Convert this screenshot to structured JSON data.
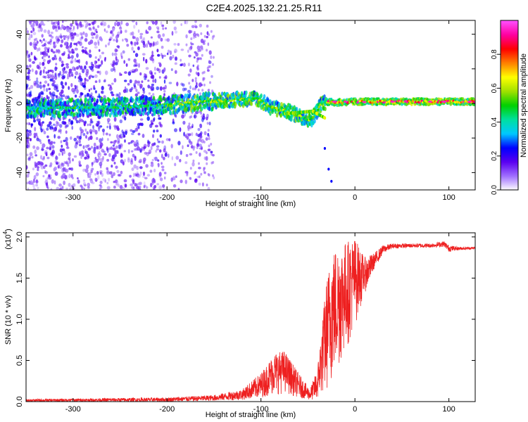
{
  "title": "C2E4.2025.132.21.25.R11",
  "chart_data": [
    {
      "type": "heatmap",
      "xlabel": "Height of straight line (km)",
      "ylabel": "Frequency (Hz)",
      "xlim": [
        -350,
        128
      ],
      "ylim": [
        -50,
        48
      ],
      "x_ticks": [
        -300,
        -200,
        -100,
        0,
        100
      ],
      "y_ticks": [
        -40,
        -20,
        0,
        20,
        40
      ],
      "colorbar": {
        "label": "Normalized spectral amplitude",
        "range": [
          0.0,
          1.0
        ],
        "ticks": [
          0.0,
          0.2,
          0.4,
          0.6,
          0.8
        ],
        "tick_labels": [
          "0.0",
          "0.2",
          "0.4",
          "0.6",
          "0.8"
        ],
        "colors": [
          "#ffffff",
          "#a070ff",
          "#5a00f0",
          "#0000ff",
          "#00c8ff",
          "#00e0a0",
          "#00d000",
          "#a0e000",
          "#ffff00",
          "#ff8000",
          "#ff0000",
          "#ff00a0",
          "#ff50ff"
        ]
      },
      "ridge": {
        "x": [
          -350,
          -250,
          -200,
          -160,
          -120,
          -105,
          -90,
          -70,
          -55,
          -48,
          -42,
          -35,
          -30,
          -20,
          0,
          20,
          60,
          100,
          128
        ],
        "y": [
          -3,
          -2,
          -1,
          1,
          2.5,
          3,
          -2,
          -5,
          -8,
          -10,
          -6,
          0.5,
          1,
          0.5,
          1,
          1,
          1,
          1,
          1
        ]
      }
    },
    {
      "type": "line",
      "xlabel": "Height of straight line (km)",
      "ylabel": "SNR (10 * v/v)",
      "y_multiplier_label": "(x10",
      "y_multiplier_exp": "4",
      "y_multiplier_close": ")",
      "xlim": [
        -350,
        128
      ],
      "ylim": [
        0,
        2.05
      ],
      "x_ticks": [
        -300,
        -200,
        -100,
        0,
        100
      ],
      "y_ticks": [
        0.0,
        0.5,
        1.0,
        1.5,
        2.0
      ],
      "y_tick_labels": [
        "0.0",
        "0.5",
        "1.0",
        "1.5",
        "2.0"
      ],
      "color": "#ee2020",
      "envelope": {
        "x": [
          -350,
          -200,
          -150,
          -120,
          -100,
          -85,
          -75,
          -60,
          -48,
          -40,
          -30,
          -25,
          -20,
          -10,
          0,
          10,
          20,
          30,
          40,
          60,
          80,
          95,
          100,
          110,
          128
        ],
        "low": [
          0,
          0,
          0.01,
          0.02,
          0.05,
          0.08,
          0.1,
          0.05,
          0.02,
          0.02,
          0.1,
          0.2,
          0.3,
          0.6,
          0.9,
          1.3,
          1.6,
          1.8,
          1.86,
          1.87,
          1.87,
          1.88,
          1.82,
          1.84,
          1.85
        ],
        "high": [
          0.03,
          0.05,
          0.08,
          0.15,
          0.35,
          0.6,
          0.62,
          0.35,
          0.15,
          0.4,
          1.5,
          1.8,
          1.9,
          1.95,
          2.0,
          1.75,
          1.8,
          1.9,
          1.92,
          1.92,
          1.92,
          1.95,
          1.9,
          1.88,
          1.88
        ]
      }
    }
  ]
}
